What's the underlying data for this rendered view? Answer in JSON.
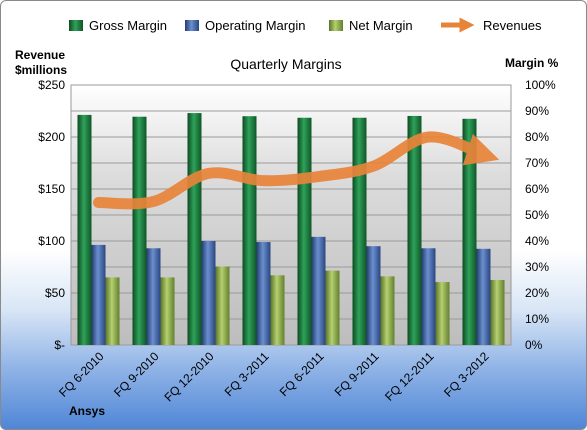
{
  "chart_data": {
    "type": "bar",
    "title": "Quarterly Margins",
    "left_axis_label_line1": "Revenue",
    "left_axis_label_line2": "$millions",
    "right_axis_label": "Margin %",
    "footer_label": "Ansys",
    "categories": [
      "FQ 6-2010",
      "FQ 9-2010",
      "FQ 12-2010",
      "FQ 3-2011",
      "FQ 6-2011",
      "FQ 9-2011",
      "FQ 12-2011",
      "FQ 3-2012"
    ],
    "left_ylim": [
      0,
      250
    ],
    "left_ticks": [
      "$-",
      "$50",
      "$100",
      "$150",
      "$200",
      "$250"
    ],
    "right_ylim": [
      0,
      100
    ],
    "right_ticks": [
      "0%",
      "10%",
      "20%",
      "30%",
      "40%",
      "50%",
      "60%",
      "70%",
      "80%",
      "90%",
      "100%"
    ],
    "grid": true,
    "legend_position": "top",
    "series": [
      {
        "name": "Gross Margin",
        "axis": "right",
        "kind": "bar",
        "color": "#1a7a3c",
        "values": [
          88.5,
          87.8,
          89.2,
          88.0,
          87.4,
          87.4,
          88.1,
          87.0
        ]
      },
      {
        "name": "Operating Margin",
        "axis": "right",
        "kind": "bar",
        "color": "#3f64a8",
        "values": [
          38.5,
          37.2,
          40.0,
          39.6,
          41.6,
          38.0,
          37.2,
          37.0
        ]
      },
      {
        "name": "Net Margin",
        "axis": "right",
        "kind": "bar",
        "color": "#8fb04a",
        "values": [
          26.0,
          26.0,
          30.2,
          26.8,
          28.6,
          26.4,
          24.2,
          25.0
        ]
      },
      {
        "name": "Revenues",
        "axis": "left",
        "kind": "line",
        "color": "#e8843a",
        "values": [
          137,
          138,
          165,
          158,
          162,
          172,
          200,
          183
        ]
      }
    ]
  }
}
